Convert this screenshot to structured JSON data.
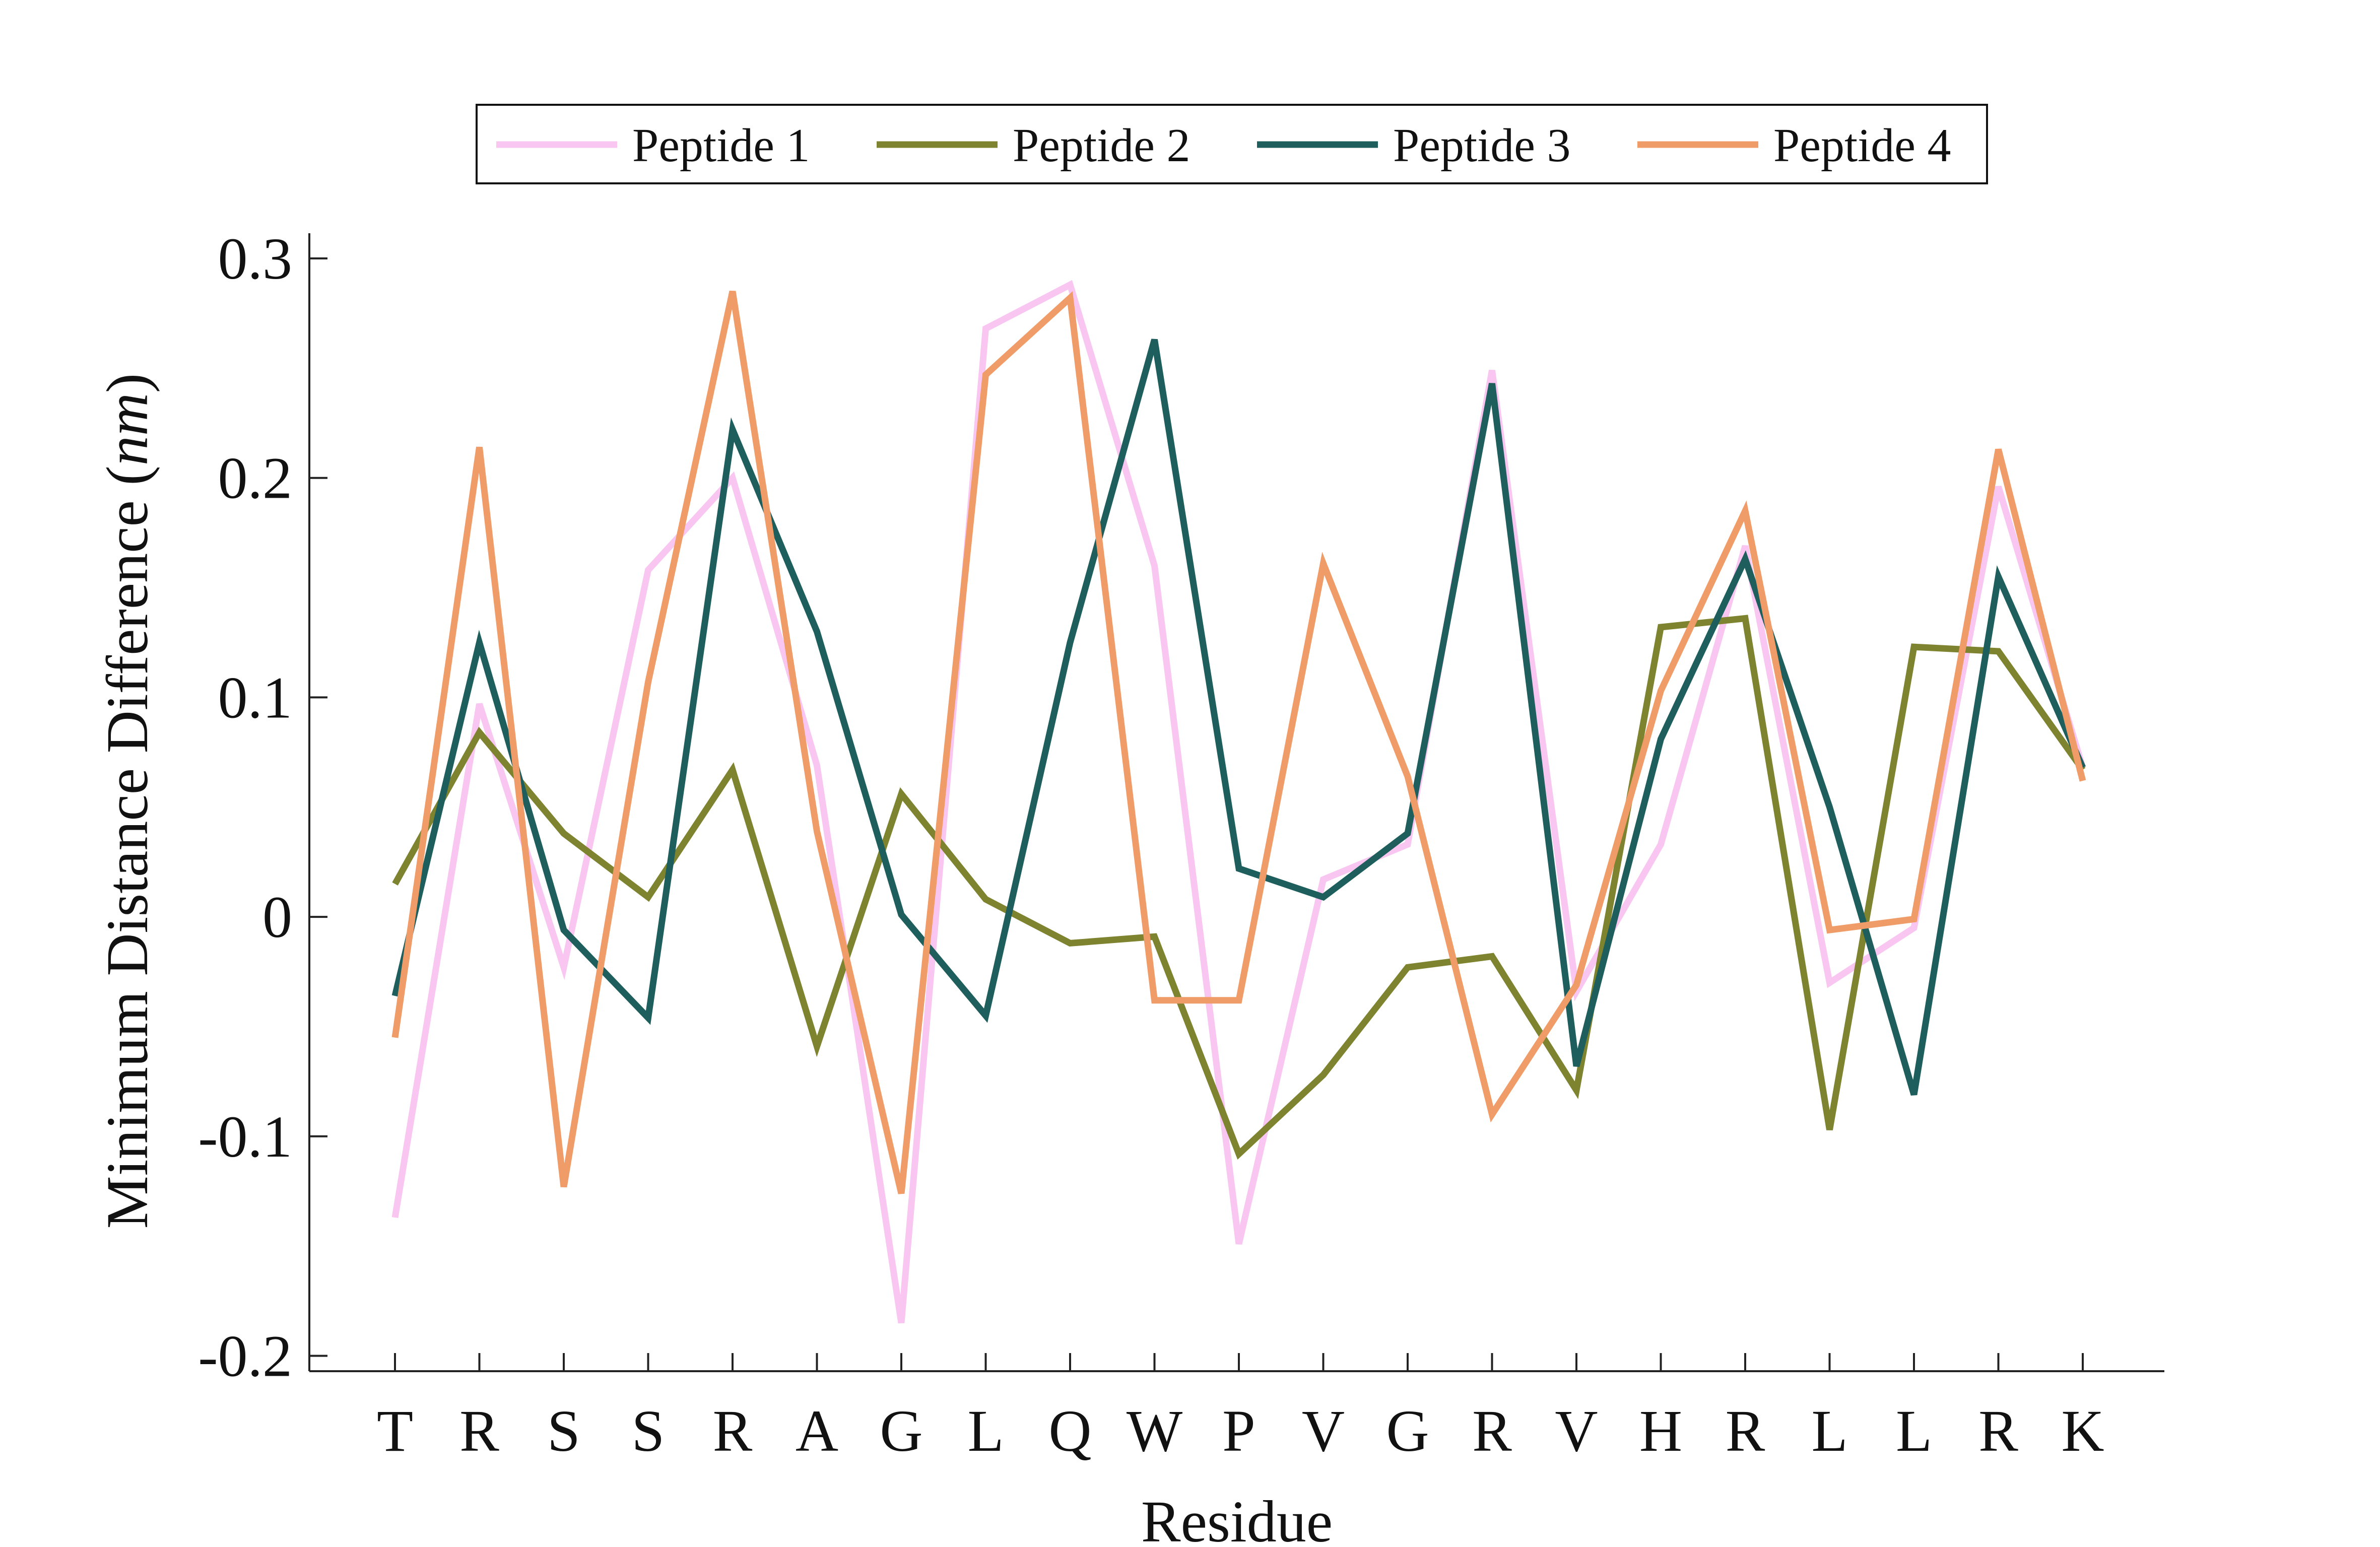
{
  "chart_data": {
    "type": "line",
    "title": "",
    "xlabel": "Residue",
    "ylabel": "Minimum Distance Difference (nm)",
    "ylabel_main": "Minimum Distance Difference (",
    "ylabel_unit": "nm",
    "ylabel_close": ")",
    "categories": [
      "T",
      "R",
      "S",
      "S",
      "R",
      "A",
      "G",
      "L",
      "Q",
      "W",
      "P",
      "V",
      "G",
      "R",
      "V",
      "H",
      "R",
      "L",
      "L",
      "R",
      "K"
    ],
    "ylim": [
      -0.21,
      0.31
    ],
    "yticks": [
      -0.2,
      -0.1,
      0,
      0.1,
      0.2,
      0.3
    ],
    "ytick_labels": [
      "-0.2",
      "-0.1",
      "0",
      "0.1",
      "0.2",
      "0.3"
    ],
    "grid": false,
    "legend_position": "top-center",
    "series": [
      {
        "name": "Peptide 1",
        "color": "#F9C6F2",
        "values": [
          -0.137,
          0.097,
          -0.023,
          0.158,
          0.2,
          0.069,
          -0.185,
          0.268,
          0.288,
          0.16,
          -0.149,
          0.017,
          0.033,
          0.249,
          -0.034,
          0.033,
          0.169,
          -0.03,
          -0.005,
          0.196,
          0.068
        ]
      },
      {
        "name": "Peptide 2",
        "color": "#7E8330",
        "values": [
          0.015,
          0.084,
          0.038,
          0.009,
          0.067,
          -0.059,
          0.056,
          0.008,
          -0.012,
          -0.009,
          -0.108,
          -0.072,
          -0.023,
          -0.018,
          -0.079,
          0.132,
          0.136,
          -0.097,
          0.123,
          0.121,
          0.067
        ]
      },
      {
        "name": "Peptide 3",
        "color": "#1E5E5C",
        "values": [
          -0.036,
          0.125,
          -0.006,
          -0.046,
          0.222,
          0.13,
          0.001,
          -0.045,
          0.125,
          0.263,
          0.022,
          0.009,
          0.038,
          0.243,
          -0.068,
          0.081,
          0.163,
          0.05,
          -0.081,
          0.155,
          0.068
        ]
      },
      {
        "name": "Peptide 4",
        "color": "#F09C68",
        "values": [
          -0.055,
          0.214,
          -0.123,
          0.107,
          0.285,
          0.039,
          -0.126,
          0.247,
          0.282,
          -0.038,
          -0.038,
          0.161,
          0.064,
          -0.09,
          -0.031,
          0.103,
          0.185,
          -0.006,
          -0.001,
          0.213,
          0.062
        ]
      }
    ]
  }
}
